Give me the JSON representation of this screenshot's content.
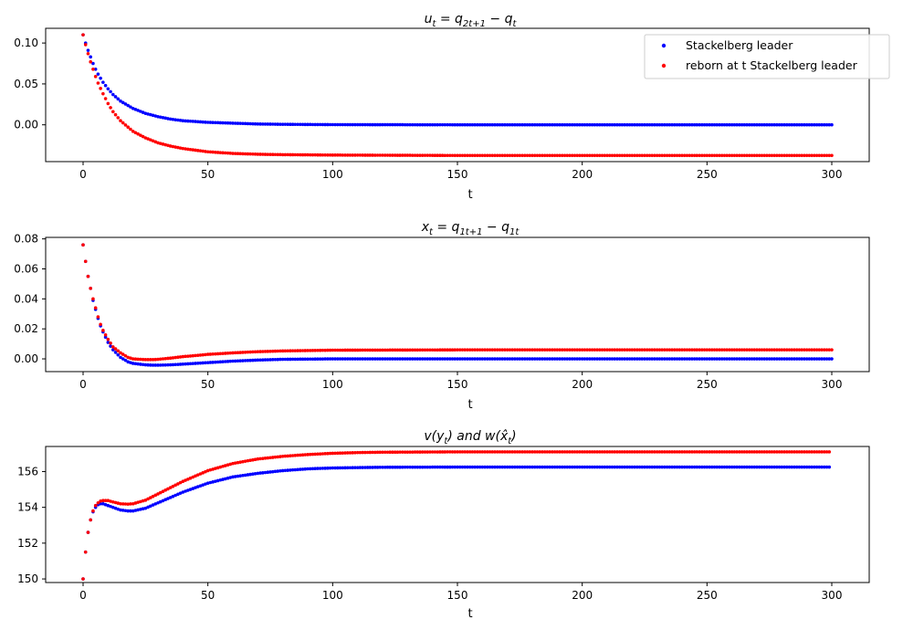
{
  "colors": {
    "leader": "#0000ff",
    "reborn": "#ff0000"
  },
  "legend": {
    "placement": "top-right",
    "entries": [
      "Stackelberg leader",
      "reborn  at t Stackelberg leader"
    ]
  },
  "chart_data": [
    {
      "type": "scatter",
      "title_parts": [
        "u",
        "t",
        " = q",
        "2t+1",
        " − q",
        "t"
      ],
      "xlabel": "t",
      "xlim": [
        -15,
        315
      ],
      "ylim": [
        -0.045,
        0.118
      ],
      "xticks": [
        0,
        50,
        100,
        150,
        200,
        250,
        300
      ],
      "yticks": [
        0.1,
        0.05,
        0.0
      ],
      "ytick_labels": [
        "0.10",
        "0.05",
        "0.00"
      ],
      "grid": false,
      "series": [
        {
          "name": "Stackelberg leader",
          "x": [
            0,
            1,
            2,
            3,
            4,
            5,
            6,
            8,
            10,
            12,
            15,
            20,
            25,
            30,
            35,
            40,
            45,
            50,
            60,
            70,
            80,
            100,
            150,
            200,
            250,
            300
          ],
          "y": [
            0.11,
            0.1,
            0.091,
            0.083,
            0.075,
            0.068,
            0.062,
            0.052,
            0.044,
            0.037,
            0.029,
            0.02,
            0.014,
            0.01,
            0.007,
            0.005,
            0.004,
            0.003,
            0.002,
            0.001,
            0.0006,
            0.0002,
            0.0,
            0.0,
            0.0,
            0.0
          ]
        },
        {
          "name": "reborn  at t Stackelberg leader",
          "x": [
            0,
            1,
            2,
            3,
            4,
            5,
            6,
            8,
            10,
            12,
            15,
            20,
            25,
            30,
            35,
            40,
            45,
            50,
            60,
            70,
            80,
            100,
            150,
            200,
            250,
            300
          ],
          "y": [
            0.11,
            0.098,
            0.087,
            0.077,
            0.068,
            0.059,
            0.051,
            0.038,
            0.026,
            0.016,
            0.005,
            -0.008,
            -0.016,
            -0.022,
            -0.026,
            -0.029,
            -0.031,
            -0.033,
            -0.035,
            -0.036,
            -0.0365,
            -0.037,
            -0.0375,
            -0.0375,
            -0.0375,
            -0.0375
          ]
        }
      ]
    },
    {
      "type": "scatter",
      "title_parts": [
        "x",
        "t",
        " = q",
        "1t+1",
        " − q",
        "1t"
      ],
      "xlabel": "t",
      "xlim": [
        -15,
        315
      ],
      "ylim": [
        -0.0085,
        0.081
      ],
      "xticks": [
        0,
        50,
        100,
        150,
        200,
        250,
        300
      ],
      "yticks": [
        0.08,
        0.06,
        0.04,
        0.02,
        0.0
      ],
      "ytick_labels": [
        "0.08",
        "0.06",
        "0.04",
        "0.02",
        "0.00"
      ],
      "grid": false,
      "series": [
        {
          "name": "Stackelberg leader",
          "x": [
            0,
            1,
            2,
            3,
            4,
            5,
            6,
            7,
            8,
            10,
            12,
            15,
            18,
            20,
            25,
            28,
            30,
            35,
            40,
            45,
            50,
            60,
            70,
            80,
            100,
            150,
            200,
            250,
            300
          ],
          "y": [
            0.076,
            0.065,
            0.055,
            0.047,
            0.039,
            0.033,
            0.027,
            0.022,
            0.018,
            0.011,
            0.006,
            0.001,
            -0.002,
            -0.003,
            -0.004,
            -0.0042,
            -0.0042,
            -0.004,
            -0.0035,
            -0.003,
            -0.0025,
            -0.0015,
            -0.0008,
            -0.0003,
            0.0,
            0.0,
            0.0,
            0.0,
            0.0
          ]
        },
        {
          "name": "reborn  at t Stackelberg leader",
          "x": [
            0,
            1,
            2,
            3,
            4,
            5,
            6,
            7,
            8,
            10,
            12,
            15,
            18,
            20,
            25,
            28,
            30,
            35,
            40,
            45,
            50,
            60,
            70,
            80,
            100,
            150,
            200,
            250,
            300
          ],
          "y": [
            0.076,
            0.065,
            0.055,
            0.047,
            0.04,
            0.034,
            0.028,
            0.023,
            0.019,
            0.013,
            0.008,
            0.004,
            0.001,
            0.0,
            -0.0005,
            -0.0005,
            -0.0003,
            0.0005,
            0.0015,
            0.0022,
            0.003,
            0.004,
            0.0048,
            0.0053,
            0.0058,
            0.006,
            0.006,
            0.006,
            0.006
          ]
        }
      ]
    },
    {
      "type": "scatter",
      "title_parts": [
        "v(y",
        "t",
        ") and w(x̂",
        "t",
        ")"
      ],
      "xlabel": "t",
      "xlim": [
        -15,
        315
      ],
      "ylim": [
        149.8,
        157.4
      ],
      "xticks": [
        0,
        50,
        100,
        150,
        200,
        250,
        300
      ],
      "yticks": [
        150,
        152,
        154,
        156
      ],
      "ytick_labels": [
        "150",
        "152",
        "154",
        "156"
      ],
      "grid": false,
      "series": [
        {
          "name": "Stackelberg leader",
          "x": [
            0,
            1,
            2,
            3,
            4,
            5,
            6,
            7,
            8,
            10,
            12,
            15,
            18,
            20,
            25,
            30,
            35,
            40,
            45,
            50,
            60,
            70,
            80,
            90,
            100,
            110,
            120,
            150,
            200,
            250,
            299
          ],
          "y": [
            150.0,
            151.5,
            152.6,
            153.3,
            153.75,
            154.0,
            154.15,
            154.2,
            154.2,
            154.1,
            154.0,
            153.85,
            153.8,
            153.8,
            153.95,
            154.25,
            154.55,
            154.85,
            155.1,
            155.35,
            155.7,
            155.9,
            156.05,
            156.15,
            156.2,
            156.22,
            156.24,
            156.25,
            156.25,
            156.25,
            156.25
          ]
        },
        {
          "name": "reborn  at t Stackelberg leader",
          "x": [
            0,
            1,
            2,
            3,
            4,
            5,
            6,
            7,
            8,
            10,
            12,
            15,
            18,
            20,
            25,
            30,
            35,
            40,
            45,
            50,
            60,
            70,
            80,
            90,
            100,
            110,
            120,
            150,
            200,
            250,
            299
          ],
          "y": [
            150.0,
            151.5,
            152.6,
            153.3,
            153.8,
            154.1,
            154.25,
            154.35,
            154.38,
            154.38,
            154.3,
            154.2,
            154.18,
            154.2,
            154.4,
            154.75,
            155.1,
            155.45,
            155.75,
            156.05,
            156.45,
            156.7,
            156.85,
            156.95,
            157.02,
            157.06,
            157.08,
            157.1,
            157.1,
            157.1,
            157.1
          ]
        }
      ]
    }
  ]
}
